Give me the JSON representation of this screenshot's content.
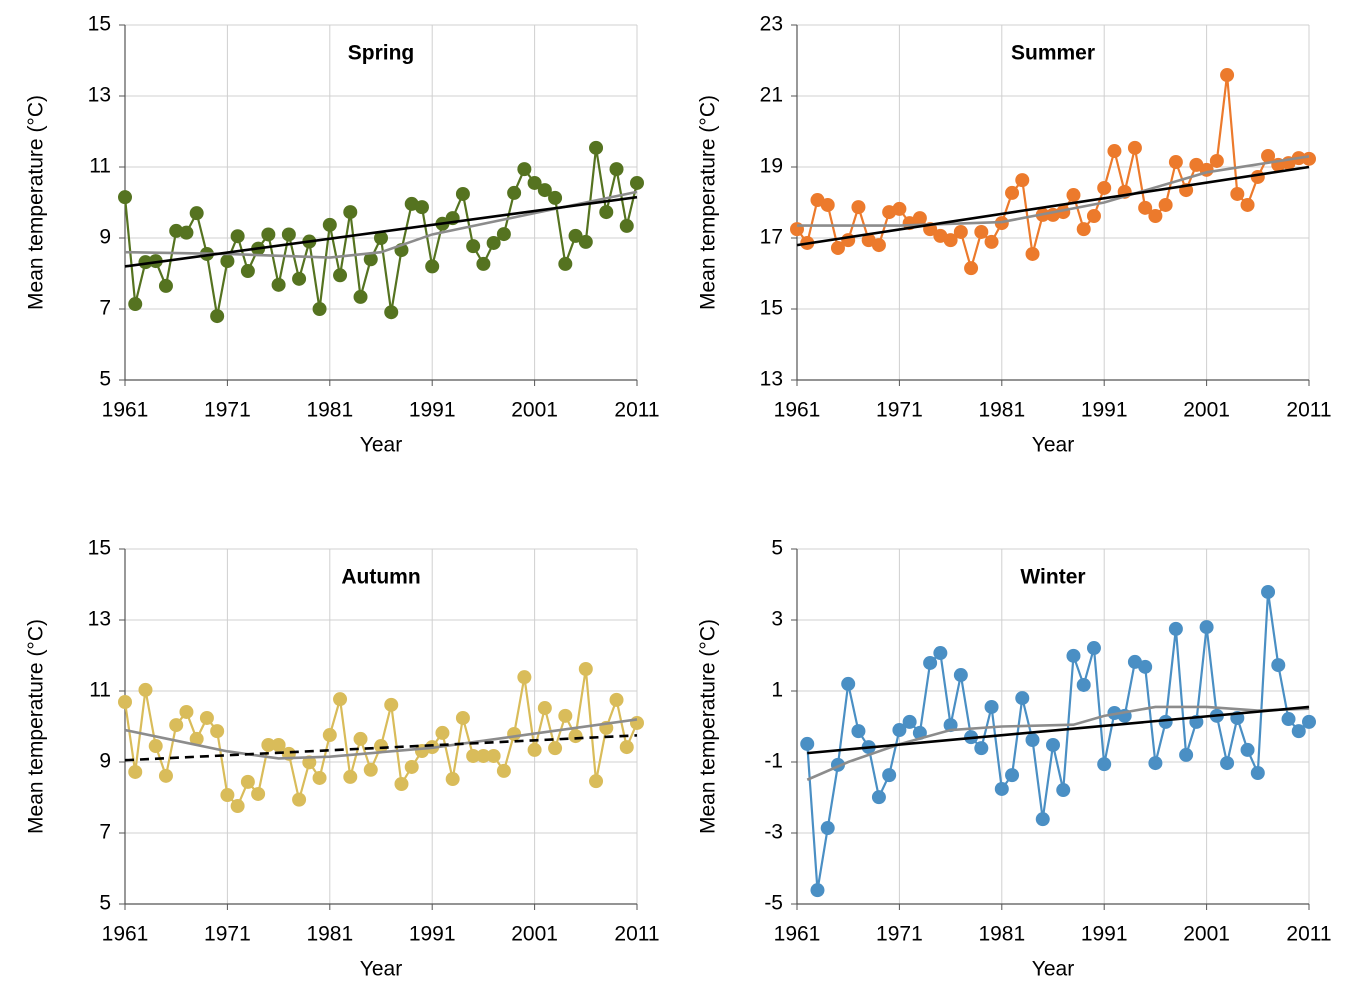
{
  "chart_data": [
    {
      "type": "line",
      "title": "Spring",
      "xlabel": "Year",
      "ylabel": "Mean temperature (°C)",
      "xlim": [
        1961,
        2011
      ],
      "xticks": [
        1961,
        1971,
        1981,
        1991,
        2001,
        2011
      ],
      "ylim": [
        5,
        15
      ],
      "yticks": [
        5,
        7,
        9,
        11,
        13,
        15
      ],
      "grid": true,
      "series": [
        {
          "color": "#557320",
          "marker": true,
          "x": [
            1961,
            1962,
            1963,
            1964,
            1965,
            1966,
            1967,
            1968,
            1969,
            1970,
            1971,
            1972,
            1973,
            1974,
            1975,
            1976,
            1977,
            1978,
            1979,
            1980,
            1981,
            1982,
            1983,
            1984,
            1985,
            1986,
            1987,
            1988,
            1989,
            1990,
            1991,
            1992,
            1993,
            1994,
            1995,
            1996,
            1997,
            1998,
            1999,
            2000,
            2001,
            2002,
            2003,
            2004,
            2005,
            2006,
            2007,
            2008,
            2009,
            2010,
            2011
          ],
          "values": [
            10.15,
            7.14,
            8.32,
            8.35,
            7.65,
            9.2,
            9.15,
            9.7,
            8.55,
            6.8,
            8.35,
            9.05,
            8.07,
            8.7,
            9.1,
            7.68,
            9.1,
            7.85,
            8.9,
            7.0,
            9.37,
            7.95,
            9.73,
            7.34,
            8.4,
            9.0,
            6.91,
            8.66,
            9.96,
            9.87,
            8.2,
            9.4,
            9.56,
            10.24,
            8.77,
            8.27,
            8.86,
            9.11,
            10.27,
            10.94,
            10.55,
            10.35,
            10.13,
            8.27,
            9.06,
            8.89,
            11.54,
            9.73,
            10.94,
            9.34,
            10.55
          ]
        },
        {
          "color": "#8c8c8c",
          "x": [
            1961,
            1971,
            1981,
            1986,
            1991,
            2001,
            2011
          ],
          "values": [
            8.6,
            8.55,
            8.45,
            8.6,
            9.1,
            9.7,
            10.3
          ]
        },
        {
          "color": "#000000",
          "x": [
            1961,
            2011
          ],
          "values": [
            8.2,
            10.15
          ]
        }
      ]
    },
    {
      "type": "line",
      "title": "Summer",
      "xlabel": "Year",
      "ylabel": "Mean temperature (°C)",
      "xlim": [
        1961,
        2011
      ],
      "xticks": [
        1961,
        1971,
        1981,
        1991,
        2001,
        2011
      ],
      "ylim": [
        13,
        23
      ],
      "yticks": [
        13,
        15,
        17,
        19,
        21,
        23
      ],
      "grid": true,
      "series": [
        {
          "color": "#ec7a2c",
          "marker": true,
          "x": [
            1961,
            1962,
            1963,
            1964,
            1965,
            1966,
            1967,
            1968,
            1969,
            1970,
            1971,
            1972,
            1973,
            1974,
            1975,
            1976,
            1977,
            1978,
            1979,
            1980,
            1981,
            1982,
            1983,
            1984,
            1985,
            1986,
            1987,
            1988,
            1989,
            1990,
            1991,
            1992,
            1993,
            1994,
            1995,
            1996,
            1997,
            1998,
            1999,
            2000,
            2001,
            2002,
            2003,
            2004,
            2005,
            2006,
            2007,
            2008,
            2009,
            2010,
            2011
          ],
          "values": [
            17.25,
            16.86,
            18.07,
            17.93,
            16.72,
            16.94,
            17.87,
            16.94,
            16.8,
            17.73,
            17.82,
            17.42,
            17.56,
            17.25,
            17.06,
            16.94,
            17.17,
            16.15,
            17.17,
            16.89,
            17.42,
            18.27,
            18.63,
            16.55,
            17.65,
            17.65,
            17.73,
            18.21,
            17.25,
            17.62,
            18.41,
            19.45,
            18.3,
            19.54,
            17.85,
            17.62,
            17.93,
            19.14,
            18.35,
            19.06,
            18.92,
            19.17,
            21.59,
            18.24,
            17.93,
            18.72,
            19.31,
            19.06,
            19.11,
            19.25,
            19.23
          ]
        },
        {
          "color": "#8c8c8c",
          "x": [
            1961,
            1971,
            1981,
            1991,
            2001,
            2011
          ],
          "values": [
            17.35,
            17.35,
            17.45,
            18.0,
            18.85,
            19.3
          ]
        },
        {
          "color": "#000000",
          "x": [
            1961,
            2011
          ],
          "values": [
            16.8,
            19.0
          ]
        }
      ]
    },
    {
      "type": "line",
      "title": "Autumn",
      "xlabel": "Year",
      "ylabel": "Mean temperature (°C)",
      "xlim": [
        1961,
        2011
      ],
      "xticks": [
        1961,
        1971,
        1981,
        1991,
        2001,
        2011
      ],
      "ylim": [
        5,
        15
      ],
      "yticks": [
        5,
        7,
        9,
        11,
        13,
        15
      ],
      "grid": true,
      "series": [
        {
          "color": "#d9bc5a",
          "marker": true,
          "x": [
            1961,
            1962,
            1963,
            1964,
            1965,
            1966,
            1967,
            1968,
            1969,
            1970,
            1971,
            1972,
            1973,
            1974,
            1975,
            1976,
            1977,
            1978,
            1979,
            1980,
            1981,
            1982,
            1983,
            1984,
            1985,
            1986,
            1987,
            1988,
            1989,
            1990,
            1991,
            1992,
            1993,
            1994,
            1995,
            1996,
            1997,
            1998,
            1999,
            2000,
            2001,
            2002,
            2003,
            2004,
            2005,
            2006,
            2007,
            2008,
            2009,
            2010,
            2011
          ],
          "values": [
            10.69,
            8.72,
            11.03,
            9.45,
            8.61,
            10.04,
            10.41,
            9.65,
            10.24,
            9.87,
            8.07,
            7.76,
            8.44,
            8.1,
            9.48,
            9.48,
            9.23,
            7.94,
            8.99,
            8.55,
            9.76,
            10.77,
            8.58,
            9.65,
            8.78,
            9.45,
            10.61,
            8.38,
            8.86,
            9.31,
            9.42,
            9.82,
            8.52,
            10.24,
            9.17,
            9.17,
            9.17,
            8.75,
            9.79,
            11.39,
            9.34,
            10.52,
            9.39,
            10.3,
            9.73,
            11.62,
            8.46,
            9.96,
            10.75,
            9.42,
            10.1
          ]
        },
        {
          "color": "#8c8c8c",
          "x": [
            1961,
            1966,
            1971,
            1976,
            1981,
            1991,
            2001,
            2011
          ],
          "values": [
            9.9,
            9.6,
            9.3,
            9.1,
            9.15,
            9.4,
            9.8,
            10.2
          ]
        },
        {
          "color": "#000000",
          "dashed": true,
          "x": [
            1961,
            2011
          ],
          "values": [
            9.05,
            9.75
          ]
        }
      ]
    },
    {
      "type": "line",
      "title": "Winter",
      "xlabel": "Year",
      "ylabel": "Mean temperature (°C)",
      "xlim": [
        1961,
        2011
      ],
      "xticks": [
        1961,
        1971,
        1981,
        1991,
        2001,
        2011
      ],
      "ylim": [
        -5,
        5
      ],
      "yticks": [
        -5,
        -3,
        -1,
        1,
        3,
        5
      ],
      "grid": true,
      "series": [
        {
          "color": "#4a8fc4",
          "marker": true,
          "x": [
            1962,
            1963,
            1964,
            1965,
            1966,
            1967,
            1968,
            1969,
            1970,
            1971,
            1972,
            1973,
            1974,
            1975,
            1976,
            1977,
            1978,
            1979,
            1980,
            1981,
            1982,
            1983,
            1984,
            1985,
            1986,
            1987,
            1988,
            1989,
            1990,
            1991,
            1992,
            1993,
            1994,
            1995,
            1996,
            1997,
            1998,
            1999,
            2000,
            2001,
            2002,
            2003,
            2004,
            2005,
            2006,
            2007,
            2008,
            2009,
            2010,
            2011
          ],
          "values": [
            -0.49,
            -4.61,
            -2.86,
            -1.08,
            1.2,
            -0.13,
            -0.58,
            -1.99,
            -1.37,
            -0.1,
            0.13,
            -0.18,
            1.79,
            2.07,
            0.04,
            1.45,
            -0.3,
            -0.61,
            0.55,
            -1.76,
            -1.37,
            0.8,
            -0.38,
            -2.61,
            -0.52,
            -1.79,
            1.99,
            1.17,
            2.21,
            -1.06,
            0.38,
            0.3,
            1.82,
            1.68,
            -1.03,
            0.13,
            2.75,
            -0.8,
            0.13,
            2.8,
            0.3,
            -1.03,
            0.24,
            -0.66,
            -1.31,
            3.79,
            1.73,
            0.21,
            -0.13,
            0.13
          ]
        },
        {
          "color": "#8c8c8c",
          "x": [
            1962,
            1966,
            1971,
            1976,
            1981,
            1988,
            1991,
            1996,
            2001,
            2006,
            2011
          ],
          "values": [
            -1.5,
            -1.0,
            -0.5,
            -0.1,
            0.0,
            0.05,
            0.3,
            0.55,
            0.55,
            0.45,
            0.5
          ]
        },
        {
          "color": "#000000",
          "x": [
            1962,
            2011
          ],
          "values": [
            -0.75,
            0.55
          ]
        }
      ]
    }
  ]
}
